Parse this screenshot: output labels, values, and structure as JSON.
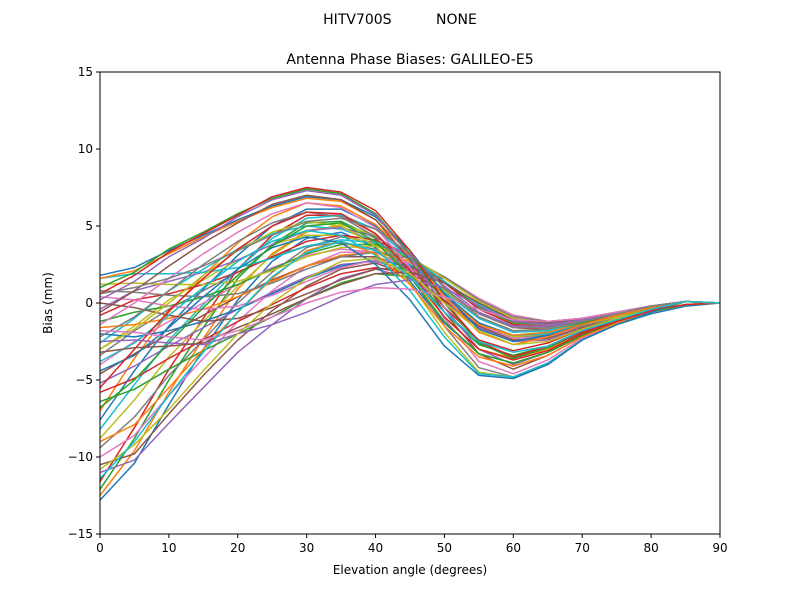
{
  "header": {
    "antenna": "HITV700S",
    "radome": "NONE"
  },
  "chart_data": {
    "type": "line",
    "title": "Antenna Phase Biases: GALILEO-E5",
    "xlabel": "Elevation angle (degrees)",
    "ylabel": "Bias (mm)",
    "xlim": [
      0,
      90
    ],
    "ylim": [
      -15,
      15
    ],
    "xticks": [
      0,
      10,
      20,
      30,
      40,
      50,
      60,
      70,
      80,
      90
    ],
    "yticks": [
      -15,
      -10,
      -5,
      0,
      5,
      10,
      15
    ],
    "grid": false,
    "legend": "none",
    "x": [
      0,
      5,
      10,
      15,
      20,
      25,
      30,
      35,
      40,
      45,
      50,
      55,
      60,
      65,
      70,
      75,
      80,
      85,
      90
    ],
    "series_colors": [
      "#1f77b4",
      "#ff7f0e",
      "#2ca02c",
      "#d62728",
      "#9467bd",
      "#8c564b",
      "#e377c2",
      "#7f7f7f",
      "#bcbd22",
      "#17becf"
    ],
    "series": [
      {
        "values": [
          -12.8,
          -10.4,
          -6.6,
          -3.0,
          0.2,
          2.7,
          4.2,
          4.6,
          3.6,
          1.4,
          -1.3,
          -3.3,
          -3.9,
          -3.2,
          -2.1,
          -1.4,
          -0.7,
          -0.2,
          0.0
        ]
      },
      {
        "values": [
          -12.5,
          -9.6,
          -5.8,
          -2.3,
          0.9,
          3.2,
          4.7,
          5.0,
          3.9,
          1.8,
          -0.9,
          -3.0,
          -3.6,
          -3.0,
          -2.0,
          -1.3,
          -0.6,
          -0.1,
          0.0
        ]
      },
      {
        "values": [
          -12.1,
          -8.8,
          -5.0,
          -1.6,
          1.6,
          3.8,
          5.2,
          5.3,
          4.2,
          2.1,
          -0.6,
          -2.7,
          -3.4,
          -2.8,
          -1.8,
          -1.2,
          -0.6,
          -0.1,
          0.0
        ]
      },
      {
        "values": [
          -11.6,
          -8.1,
          -4.3,
          -1.0,
          2.2,
          4.4,
          5.7,
          5.7,
          4.5,
          2.4,
          -0.3,
          -2.4,
          -3.1,
          -2.6,
          -1.7,
          -1.1,
          -0.5,
          -0.1,
          0.0
        ]
      },
      {
        "values": [
          -11.0,
          -10.2,
          -7.8,
          -5.5,
          -3.2,
          -1.4,
          0.3,
          1.6,
          2.2,
          1.6,
          0.1,
          -1.6,
          -2.5,
          -2.4,
          -1.7,
          -1.1,
          -0.4,
          0.1,
          0.0
        ]
      },
      {
        "values": [
          -10.5,
          -9.8,
          -7.2,
          -4.7,
          -2.4,
          -0.5,
          1.1,
          2.2,
          2.6,
          1.8,
          0.2,
          -1.5,
          -2.4,
          -2.3,
          -1.6,
          -1.0,
          -0.3,
          0.1,
          0.0
        ]
      },
      {
        "values": [
          -10.0,
          -8.6,
          -6.0,
          -3.6,
          -1.2,
          0.8,
          2.4,
          3.3,
          3.3,
          2.2,
          0.4,
          -1.4,
          -2.3,
          -2.2,
          -1.5,
          -0.9,
          -0.3,
          0.1,
          0.0
        ]
      },
      {
        "values": [
          -9.4,
          -7.4,
          -4.7,
          -2.4,
          0.0,
          2.0,
          3.6,
          4.3,
          3.9,
          2.5,
          0.5,
          -1.3,
          -2.2,
          -2.1,
          -1.5,
          -0.9,
          -0.3,
          0.1,
          0.0
        ]
      },
      {
        "values": [
          -8.8,
          -6.3,
          -3.5,
          -1.2,
          1.1,
          3.1,
          4.6,
          5.1,
          4.4,
          2.7,
          0.6,
          -1.3,
          -2.2,
          -2.0,
          -1.4,
          -0.9,
          -0.3,
          0.1,
          0.0
        ]
      },
      {
        "values": [
          -8.2,
          -5.3,
          -2.4,
          -0.1,
          2.2,
          4.2,
          5.5,
          5.7,
          4.8,
          2.9,
          0.6,
          -1.3,
          -2.1,
          -2.0,
          -1.4,
          -0.8,
          -0.3,
          0.1,
          0.0
        ]
      },
      {
        "values": [
          -7.6,
          -4.4,
          -1.5,
          0.9,
          3.1,
          5.0,
          6.1,
          6.1,
          5.0,
          3.0,
          0.6,
          -1.3,
          -2.1,
          -1.9,
          -1.3,
          -0.8,
          -0.3,
          0.1,
          0.0
        ]
      },
      {
        "values": [
          -7.0,
          -3.6,
          -0.6,
          1.8,
          3.9,
          5.6,
          6.5,
          6.3,
          5.1,
          3.0,
          0.5,
          -1.4,
          -2.1,
          -1.9,
          -1.3,
          -0.8,
          -0.3,
          0.1,
          0.0
        ]
      },
      {
        "values": [
          -6.4,
          -5.6,
          -4.3,
          -3.1,
          -2.0,
          -0.9,
          0.3,
          1.3,
          1.9,
          1.7,
          0.7,
          -0.7,
          -1.6,
          -1.7,
          -1.3,
          -0.8,
          -0.3,
          0.1,
          0.0
        ]
      },
      {
        "values": [
          -5.8,
          -4.9,
          -3.6,
          -2.4,
          -1.2,
          -0.1,
          1.0,
          1.9,
          2.3,
          1.9,
          0.8,
          -0.7,
          -1.6,
          -1.7,
          -1.2,
          -0.8,
          -0.3,
          0.1,
          0.0
        ]
      },
      {
        "values": [
          -5.2,
          -4.1,
          -2.8,
          -1.6,
          -0.4,
          0.7,
          1.7,
          2.5,
          2.7,
          2.1,
          0.8,
          -0.7,
          -1.6,
          -1.6,
          -1.2,
          -0.7,
          -0.2,
          0.1,
          0.0
        ]
      },
      {
        "values": [
          -4.6,
          -3.3,
          -2.0,
          -0.8,
          0.4,
          1.5,
          2.4,
          3.0,
          3.0,
          2.2,
          0.9,
          -0.7,
          -1.6,
          -1.6,
          -1.2,
          -0.7,
          -0.2,
          0.1,
          0.0
        ]
      },
      {
        "values": [
          -4.0,
          -2.5,
          -1.2,
          0.0,
          1.2,
          2.3,
          3.1,
          3.5,
          3.3,
          2.3,
          0.9,
          -0.7,
          -1.6,
          -1.6,
          -1.1,
          -0.7,
          -0.2,
          0.1,
          0.0
        ]
      },
      {
        "values": [
          -3.4,
          -1.8,
          -0.4,
          0.8,
          2.0,
          3.0,
          3.7,
          3.9,
          3.5,
          2.4,
          0.9,
          -0.7,
          -1.6,
          -1.6,
          -1.1,
          -0.7,
          -0.2,
          0.1,
          0.0
        ]
      },
      {
        "values": [
          -3.0,
          -1.5,
          0.2,
          1.5,
          2.8,
          3.8,
          4.4,
          4.4,
          3.8,
          2.5,
          0.8,
          -0.9,
          -1.8,
          -1.7,
          -1.2,
          -0.7,
          -0.2,
          0.1,
          0.0
        ]
      },
      {
        "values": [
          -2.6,
          -1.0,
          0.8,
          2.2,
          3.5,
          4.5,
          5.0,
          4.8,
          4.0,
          2.5,
          0.7,
          -1.0,
          -1.9,
          -1.8,
          -1.2,
          -0.7,
          -0.2,
          0.1,
          0.0
        ]
      },
      {
        "values": [
          -2.0,
          -2.2,
          -1.8,
          -1.2,
          -0.4,
          0.6,
          1.6,
          2.4,
          2.8,
          2.4,
          1.3,
          -0.2,
          -1.2,
          -1.4,
          -1.1,
          -0.6,
          -0.2,
          0.1,
          0.0
        ]
      },
      {
        "values": [
          -1.6,
          -1.4,
          -1.0,
          -0.4,
          0.4,
          1.4,
          2.4,
          3.1,
          3.3,
          2.7,
          1.4,
          -0.2,
          -1.2,
          -1.4,
          -1.0,
          -0.6,
          -0.2,
          0.1,
          0.0
        ]
      },
      {
        "values": [
          -1.2,
          -0.6,
          -0.2,
          0.4,
          1.2,
          2.2,
          3.2,
          3.8,
          3.8,
          2.9,
          1.4,
          -0.3,
          -1.3,
          -1.4,
          -1.0,
          -0.6,
          -0.2,
          0.1,
          0.0
        ]
      },
      {
        "values": [
          -0.8,
          0.2,
          0.6,
          1.2,
          2.0,
          3.0,
          4.0,
          4.4,
          4.1,
          3.0,
          1.3,
          -0.4,
          -1.4,
          -1.5,
          -1.1,
          -0.6,
          -0.2,
          0.1,
          0.0
        ]
      },
      {
        "values": [
          -0.4,
          0.8,
          1.4,
          2.0,
          2.8,
          3.8,
          4.7,
          4.9,
          4.3,
          3.0,
          1.1,
          -0.6,
          -1.5,
          -1.5,
          -1.1,
          -0.6,
          -0.2,
          0.1,
          0.0
        ]
      },
      {
        "values": [
          0.0,
          -0.3,
          -0.8,
          -1.2,
          -1.0,
          -0.3,
          0.6,
          1.5,
          2.2,
          2.3,
          1.6,
          0.3,
          -0.8,
          -1.2,
          -1.0,
          -0.6,
          -0.2,
          0.1,
          0.0
        ]
      },
      {
        "values": [
          0.4,
          0.2,
          -0.2,
          -0.4,
          -0.2,
          0.5,
          1.4,
          2.3,
          2.8,
          2.6,
          1.7,
          0.3,
          -0.8,
          -1.2,
          -1.0,
          -0.6,
          -0.2,
          0.1,
          0.0
        ]
      },
      {
        "values": [
          0.8,
          0.7,
          0.5,
          0.4,
          0.6,
          1.3,
          2.2,
          3.0,
          3.3,
          2.9,
          1.7,
          0.2,
          -0.9,
          -1.2,
          -1.0,
          -0.6,
          -0.2,
          0.1,
          0.0
        ]
      },
      {
        "values": [
          1.2,
          1.3,
          1.2,
          1.2,
          1.4,
          2.1,
          3.0,
          3.6,
          3.7,
          3.0,
          1.6,
          0.1,
          -1.0,
          -1.3,
          -1.0,
          -0.6,
          -0.2,
          0.1,
          0.0
        ]
      },
      {
        "values": [
          1.6,
          1.9,
          1.9,
          2.0,
          2.3,
          2.9,
          3.7,
          4.1,
          3.9,
          3.0,
          1.4,
          -0.1,
          -1.1,
          -1.3,
          -1.0,
          -0.6,
          -0.2,
          0.1,
          0.0
        ]
      },
      {
        "values": [
          1.8,
          2.3,
          3.4,
          4.4,
          5.4,
          6.3,
          6.9,
          6.7,
          5.6,
          3.4,
          0.6,
          -1.7,
          -2.5,
          -2.1,
          -1.4,
          -0.8,
          -0.3,
          0.1,
          0.0
        ]
      },
      {
        "values": [
          1.6,
          2.1,
          3.2,
          4.3,
          5.3,
          6.2,
          6.8,
          6.6,
          5.4,
          3.2,
          0.4,
          -1.9,
          -2.7,
          -2.2,
          -1.4,
          -0.8,
          -0.3,
          0.1,
          0.0
        ]
      },
      {
        "values": [
          1.0,
          2.0,
          3.5,
          4.6,
          5.8,
          6.8,
          7.4,
          7.1,
          5.8,
          3.2,
          0.0,
          -2.6,
          -3.6,
          -2.9,
          -1.9,
          -1.1,
          -0.4,
          0.1,
          0.0
        ]
      },
      {
        "values": [
          0.6,
          1.8,
          3.3,
          4.5,
          5.7,
          6.9,
          7.5,
          7.2,
          6.0,
          3.4,
          0.1,
          -2.5,
          -3.5,
          -2.8,
          -1.9,
          -1.1,
          -0.4,
          0.1,
          0.0
        ]
      },
      {
        "values": [
          0.2,
          1.4,
          3.0,
          4.2,
          5.6,
          6.7,
          7.3,
          7.0,
          5.7,
          3.1,
          -0.3,
          -3.0,
          -4.0,
          -3.2,
          -2.1,
          -1.2,
          -0.5,
          0.1,
          0.0
        ]
      },
      {
        "values": [
          -0.6,
          0.8,
          2.4,
          3.9,
          5.2,
          6.4,
          7.0,
          6.7,
          5.4,
          2.8,
          -0.6,
          -3.3,
          -4.3,
          -3.4,
          -2.2,
          -1.3,
          -0.5,
          0.1,
          0.0
        ]
      },
      {
        "values": [
          -1.4,
          0.0,
          1.6,
          3.2,
          4.6,
          5.8,
          6.5,
          6.2,
          4.9,
          2.3,
          -1.0,
          -3.8,
          -4.6,
          -3.7,
          -2.3,
          -1.4,
          -0.5,
          0.1,
          0.0
        ]
      },
      {
        "values": [
          -2.2,
          -0.9,
          0.8,
          2.5,
          4.0,
          5.2,
          5.9,
          5.6,
          4.3,
          1.8,
          -1.5,
          -4.2,
          -4.8,
          -3.9,
          -2.4,
          -1.4,
          -0.6,
          0.1,
          0.0
        ]
      },
      {
        "values": [
          -3.0,
          -1.7,
          0.0,
          1.8,
          3.4,
          4.6,
          5.3,
          5.0,
          3.7,
          1.3,
          -1.9,
          -4.5,
          -4.8,
          -3.9,
          -2.4,
          -1.4,
          -0.6,
          0.1,
          0.0
        ]
      },
      {
        "values": [
          -3.8,
          -2.6,
          -0.8,
          1.0,
          2.7,
          4.0,
          4.7,
          4.4,
          3.1,
          0.8,
          -2.2,
          -4.6,
          -4.8,
          -3.9,
          -2.4,
          -1.4,
          -0.6,
          0.1,
          0.0
        ]
      },
      {
        "values": [
          -4.4,
          -3.4,
          -1.6,
          0.4,
          2.2,
          3.6,
          4.3,
          3.9,
          2.5,
          0.2,
          -2.8,
          -4.7,
          -4.9,
          -4.0,
          -2.4,
          -1.4,
          -0.6,
          0.1,
          0.0
        ]
      },
      {
        "values": [
          -9.0,
          -7.9,
          -5.5,
          -3.0,
          -0.6,
          1.6,
          3.4,
          4.0,
          3.2,
          1.2,
          -1.5,
          -3.5,
          -4.1,
          -3.4,
          -2.2,
          -1.3,
          -0.5,
          0.1,
          0.0
        ]
      },
      {
        "values": [
          -6.8,
          -5.0,
          -2.6,
          -0.3,
          1.8,
          3.7,
          5.0,
          5.2,
          4.0,
          1.7,
          -1.2,
          -3.3,
          -3.9,
          -3.2,
          -2.1,
          -1.2,
          -0.5,
          0.1,
          0.0
        ]
      },
      {
        "values": [
          -5.5,
          -3.0,
          -0.5,
          1.6,
          3.5,
          5.0,
          5.9,
          5.8,
          4.5,
          2.1,
          -0.9,
          -3.0,
          -3.7,
          -3.1,
          -2.0,
          -1.2,
          -0.5,
          0.1,
          0.0
        ]
      },
      {
        "values": [
          -2.5,
          -2.4,
          -2.6,
          -2.7,
          -2.0,
          -1.4,
          -0.6,
          0.4,
          1.2,
          1.5,
          1.0,
          -0.2,
          -1.2,
          -1.4,
          -1.1,
          -0.6,
          -0.2,
          0.1,
          0.0
        ]
      },
      {
        "values": [
          -3.2,
          -2.9,
          -2.8,
          -2.6,
          -1.6,
          -0.7,
          0.3,
          1.2,
          1.9,
          2.0,
          1.3,
          0.0,
          -1.1,
          -1.3,
          -1.0,
          -0.6,
          -0.2,
          0.1,
          0.0
        ]
      },
      {
        "values": [
          -1.8,
          -1.9,
          -2.2,
          -2.4,
          -1.8,
          -0.9,
          0.0,
          0.7,
          1.0,
          0.9,
          0.4,
          -0.4,
          -1.1,
          -1.2,
          -1.0,
          -0.6,
          -0.2,
          0.1,
          0.0
        ]
      },
      {
        "values": [
          0.6,
          1.0,
          1.6,
          2.4,
          3.4,
          4.4,
          5.3,
          5.5,
          4.8,
          3.2,
          1.0,
          -0.9,
          -1.8,
          -1.7,
          -1.2,
          -0.7,
          -0.2,
          0.1,
          0.0
        ]
      },
      {
        "values": [
          -10.8,
          -9.2,
          -6.9,
          -4.4,
          -2.0,
          0.0,
          1.6,
          2.7,
          2.9,
          1.9,
          0.0,
          -1.8,
          -2.7,
          -2.5,
          -1.7,
          -1.0,
          -0.4,
          0.1,
          0.0
        ]
      },
      {
        "values": [
          -11.4,
          -9.0,
          -6.0,
          -3.2,
          -0.6,
          1.7,
          3.3,
          4.0,
          3.4,
          1.7,
          -0.6,
          -2.5,
          -3.2,
          -2.8,
          -1.8,
          -1.1,
          -0.4,
          0.1,
          0.0
        ]
      }
    ]
  }
}
